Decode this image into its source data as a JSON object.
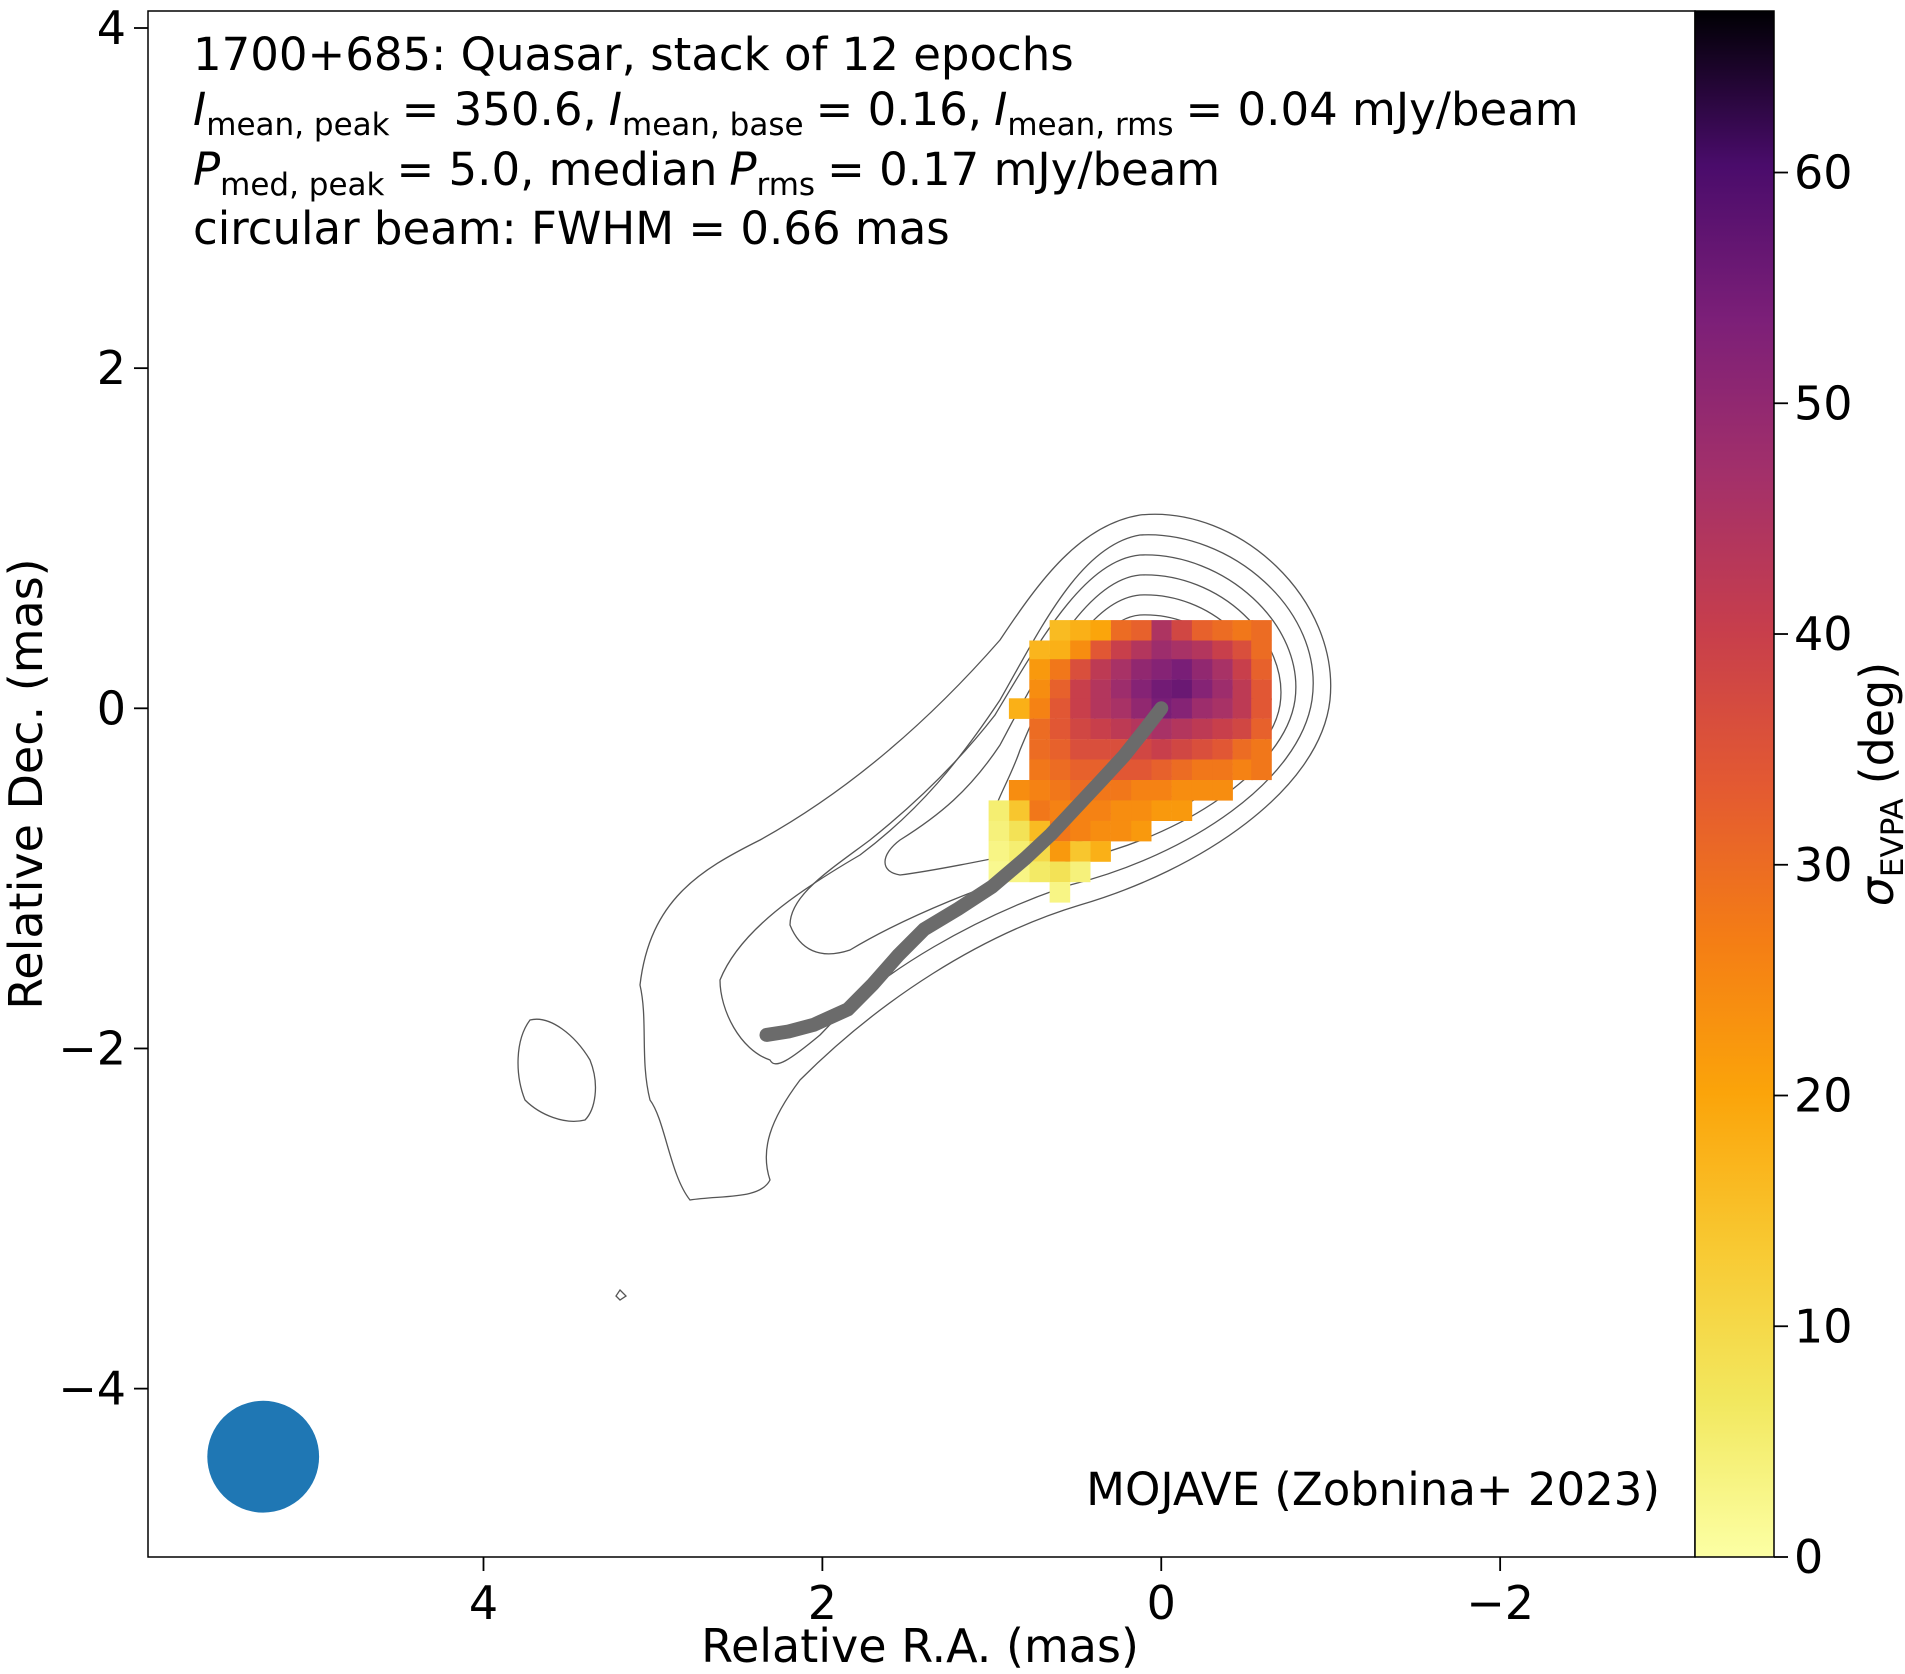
{
  "chart_data": {
    "type": "heatmap",
    "source": "1700+685",
    "source_class": "Quasar",
    "epochs_text": "stack of 12 epochs",
    "title_line1": "1700+685: Quasar, stack of 12 epochs",
    "stats_line2": {
      "I_symbol": "I",
      "peak_sub": "mean, peak",
      "peak_value": "= 350.6,",
      "base_sub": "mean, base",
      "base_value": "= 0.16,",
      "rms_sub": "mean, rms",
      "rms_value": "= 0.04 mJy/beam"
    },
    "stats_line3": {
      "P_symbol": "P",
      "peak_sub": "med, peak",
      "peak_value": "= 5.0, median",
      "rms_sub": "rms",
      "rms_value": "= 0.17 mJy/beam"
    },
    "beam_line": "circular beam: FWHM = 0.66 mas",
    "credit": "MOJAVE (Zobnina+ 2023)",
    "xlabel": "Relative R.A. (mas)",
    "ylabel": "Relative Dec. (mas)",
    "colorbar_label_symbol": "σ",
    "colorbar_label_sub": "EVPA",
    "colorbar_label_unit": "(deg)",
    "xlim": [
      5.98,
      -3.15
    ],
    "ylim": [
      -4.99,
      4.1
    ],
    "xticks": [
      4,
      2,
      0,
      -2
    ],
    "xtick_labels": [
      "4",
      "2",
      "0",
      "−2"
    ],
    "yticks": [
      4,
      2,
      0,
      -2,
      -4
    ],
    "ytick_labels": [
      "4",
      "2",
      "0",
      "−2",
      "−4"
    ],
    "colorbar_range": [
      0,
      67
    ],
    "colorbar_ticks": [
      0,
      10,
      20,
      30,
      40,
      50,
      60
    ],
    "colorbar_tick_labels": [
      "0",
      "10",
      "20",
      "30",
      "40",
      "50",
      "60"
    ],
    "colormap": "inferno_r",
    "beam": {
      "fwhm_mas": 0.66,
      "center": [
        5.3,
        -4.4
      ],
      "color": "#1f77b4"
    },
    "ridgeline_color": "#6b6b6b",
    "contour_color": "#555555",
    "ridgeline": [
      [
        0.0,
        0.0
      ],
      [
        0.1,
        -0.13
      ],
      [
        0.22,
        -0.28
      ],
      [
        0.35,
        -0.42
      ],
      [
        0.5,
        -0.58
      ],
      [
        0.65,
        -0.74
      ],
      [
        0.8,
        -0.88
      ],
      [
        1.0,
        -1.05
      ],
      [
        1.2,
        -1.18
      ],
      [
        1.4,
        -1.3
      ],
      [
        1.55,
        -1.45
      ],
      [
        1.7,
        -1.62
      ],
      [
        1.85,
        -1.77
      ],
      [
        2.05,
        -1.86
      ],
      [
        2.2,
        -1.9
      ],
      [
        2.33,
        -1.92
      ]
    ],
    "evpa_pixel_size_mas": 0.118,
    "evpa_pixels": [
      [
        0.0,
        0.46,
        45
      ],
      [
        -0.12,
        0.46,
        38
      ],
      [
        -0.24,
        0.46,
        32
      ],
      [
        0.12,
        0.46,
        32
      ],
      [
        0.24,
        0.46,
        30
      ],
      [
        0.36,
        0.46,
        20
      ],
      [
        0.48,
        0.46,
        18
      ],
      [
        0.6,
        0.46,
        16
      ],
      [
        -0.36,
        0.46,
        30
      ],
      [
        -0.48,
        0.46,
        28
      ],
      [
        -0.59,
        0.46,
        30
      ],
      [
        0.0,
        0.34,
        48
      ],
      [
        -0.12,
        0.34,
        46
      ],
      [
        -0.24,
        0.34,
        44
      ],
      [
        0.12,
        0.34,
        44
      ],
      [
        0.24,
        0.34,
        40
      ],
      [
        0.36,
        0.34,
        34
      ],
      [
        0.48,
        0.34,
        24
      ],
      [
        0.6,
        0.34,
        18
      ],
      [
        0.72,
        0.34,
        17
      ],
      [
        -0.36,
        0.34,
        40
      ],
      [
        -0.48,
        0.34,
        36
      ],
      [
        -0.59,
        0.34,
        30
      ],
      [
        0.0,
        0.23,
        52
      ],
      [
        -0.12,
        0.23,
        54
      ],
      [
        -0.24,
        0.23,
        50
      ],
      [
        0.12,
        0.23,
        50
      ],
      [
        0.24,
        0.23,
        46
      ],
      [
        0.36,
        0.23,
        42
      ],
      [
        0.48,
        0.23,
        36
      ],
      [
        0.6,
        0.23,
        28
      ],
      [
        0.72,
        0.23,
        22
      ],
      [
        -0.36,
        0.23,
        46
      ],
      [
        -0.48,
        0.23,
        40
      ],
      [
        -0.59,
        0.23,
        32
      ],
      [
        0.0,
        0.11,
        55
      ],
      [
        -0.12,
        0.11,
        56
      ],
      [
        -0.24,
        0.11,
        52
      ],
      [
        0.12,
        0.11,
        52
      ],
      [
        0.24,
        0.11,
        48
      ],
      [
        0.36,
        0.11,
        44
      ],
      [
        0.48,
        0.11,
        40
      ],
      [
        0.6,
        0.11,
        32
      ],
      [
        0.72,
        0.11,
        24
      ],
      [
        -0.36,
        0.11,
        48
      ],
      [
        -0.48,
        0.11,
        42
      ],
      [
        -0.59,
        0.11,
        34
      ],
      [
        0.0,
        0.0,
        54
      ],
      [
        -0.12,
        0.0,
        52
      ],
      [
        -0.24,
        0.0,
        48
      ],
      [
        0.12,
        0.0,
        50
      ],
      [
        0.24,
        0.0,
        46
      ],
      [
        0.36,
        0.0,
        44
      ],
      [
        0.48,
        0.0,
        40
      ],
      [
        0.6,
        0.0,
        34
      ],
      [
        0.72,
        0.0,
        26
      ],
      [
        0.84,
        0.0,
        18
      ],
      [
        -0.36,
        0.0,
        46
      ],
      [
        -0.48,
        0.0,
        42
      ],
      [
        -0.59,
        0.0,
        34
      ],
      [
        0.0,
        -0.12,
        46
      ],
      [
        -0.12,
        -0.12,
        44
      ],
      [
        -0.24,
        -0.12,
        42
      ],
      [
        0.12,
        -0.12,
        44
      ],
      [
        0.24,
        -0.12,
        42
      ],
      [
        0.36,
        -0.12,
        40
      ],
      [
        0.48,
        -0.12,
        38
      ],
      [
        0.6,
        -0.12,
        34
      ],
      [
        0.72,
        -0.12,
        30
      ],
      [
        -0.36,
        -0.12,
        40
      ],
      [
        -0.48,
        -0.12,
        38
      ],
      [
        -0.59,
        -0.12,
        32
      ],
      [
        0.0,
        -0.24,
        40
      ],
      [
        -0.12,
        -0.24,
        38
      ],
      [
        -0.24,
        -0.24,
        36
      ],
      [
        0.12,
        -0.24,
        38
      ],
      [
        0.24,
        -0.24,
        36
      ],
      [
        0.36,
        -0.24,
        36
      ],
      [
        0.48,
        -0.24,
        36
      ],
      [
        0.6,
        -0.24,
        32
      ],
      [
        0.72,
        -0.24,
        30
      ],
      [
        -0.36,
        -0.24,
        34
      ],
      [
        -0.48,
        -0.24,
        30
      ],
      [
        -0.59,
        -0.24,
        28
      ],
      [
        0.0,
        -0.36,
        32
      ],
      [
        -0.12,
        -0.36,
        30
      ],
      [
        -0.24,
        -0.36,
        28
      ],
      [
        0.12,
        -0.36,
        34
      ],
      [
        0.24,
        -0.36,
        34
      ],
      [
        0.36,
        -0.36,
        32
      ],
      [
        0.48,
        -0.36,
        32
      ],
      [
        0.6,
        -0.36,
        30
      ],
      [
        0.72,
        -0.36,
        28
      ],
      [
        -0.36,
        -0.36,
        28
      ],
      [
        -0.48,
        -0.36,
        26
      ],
      [
        -0.59,
        -0.36,
        28
      ],
      [
        0.0,
        -0.48,
        26
      ],
      [
        -0.12,
        -0.48,
        24
      ],
      [
        -0.24,
        -0.48,
        24
      ],
      [
        0.12,
        -0.48,
        26
      ],
      [
        0.24,
        -0.48,
        28
      ],
      [
        0.36,
        -0.48,
        28
      ],
      [
        0.48,
        -0.48,
        30
      ],
      [
        0.6,
        -0.48,
        28
      ],
      [
        0.72,
        -0.48,
        26
      ],
      [
        0.84,
        -0.48,
        24
      ],
      [
        -0.36,
        -0.48,
        24
      ],
      [
        0.0,
        -0.6,
        22
      ],
      [
        -0.12,
        -0.6,
        22
      ],
      [
        0.12,
        -0.6,
        24
      ],
      [
        0.24,
        -0.6,
        24
      ],
      [
        0.36,
        -0.6,
        26
      ],
      [
        0.48,
        -0.6,
        26
      ],
      [
        0.6,
        -0.6,
        26
      ],
      [
        0.72,
        -0.6,
        28
      ],
      [
        0.84,
        -0.6,
        14
      ],
      [
        0.96,
        -0.6,
        5
      ],
      [
        0.12,
        -0.72,
        22
      ],
      [
        0.24,
        -0.72,
        24
      ],
      [
        0.36,
        -0.72,
        24
      ],
      [
        0.48,
        -0.72,
        26
      ],
      [
        0.6,
        -0.72,
        28
      ],
      [
        0.72,
        -0.72,
        16
      ],
      [
        0.84,
        -0.72,
        8
      ],
      [
        0.96,
        -0.72,
        4
      ],
      [
        0.36,
        -0.84,
        18
      ],
      [
        0.48,
        -0.84,
        14
      ],
      [
        0.6,
        -0.84,
        22
      ],
      [
        0.72,
        -0.84,
        10
      ],
      [
        0.84,
        -0.84,
        5
      ],
      [
        0.96,
        -0.84,
        3
      ],
      [
        0.48,
        -0.96,
        4
      ],
      [
        0.6,
        -0.96,
        8
      ],
      [
        0.72,
        -0.96,
        6
      ],
      [
        0.84,
        -0.96,
        3
      ],
      [
        0.96,
        -0.96,
        2
      ],
      [
        0.6,
        -1.08,
        3
      ]
    ]
  }
}
